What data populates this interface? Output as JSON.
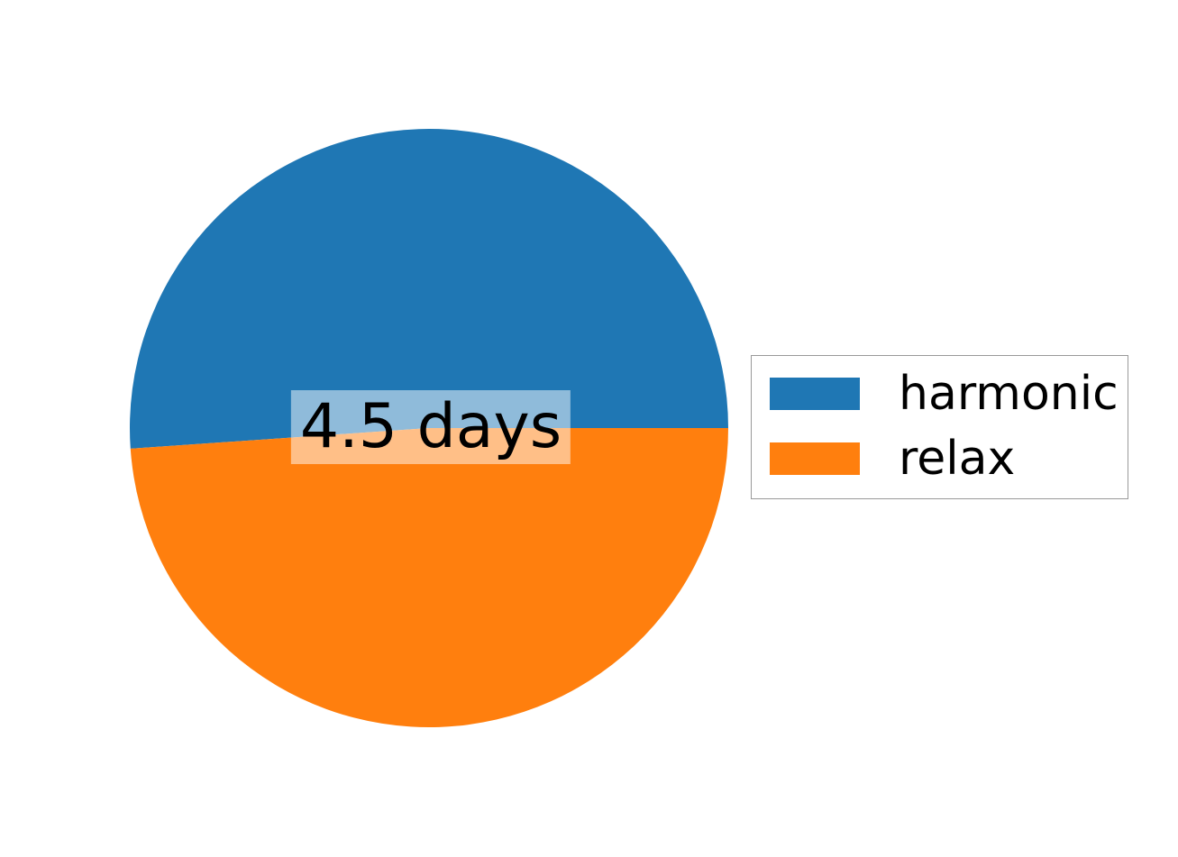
{
  "chart_data": {
    "type": "pie",
    "labels": [
      "harmonic",
      "relax"
    ],
    "values_percent": [
      51.1,
      48.9
    ],
    "colors": [
      "#1f77b4",
      "#ff7f0e"
    ],
    "start_angle_deg": 0,
    "direction": "counterclockwise",
    "center_label": "4.5 days",
    "legend": {
      "position": "center right",
      "entries": [
        "harmonic",
        "relax"
      ]
    },
    "background_color": "#ffffff",
    "label_box_color": "rgba(255,255,255,0.5)"
  }
}
